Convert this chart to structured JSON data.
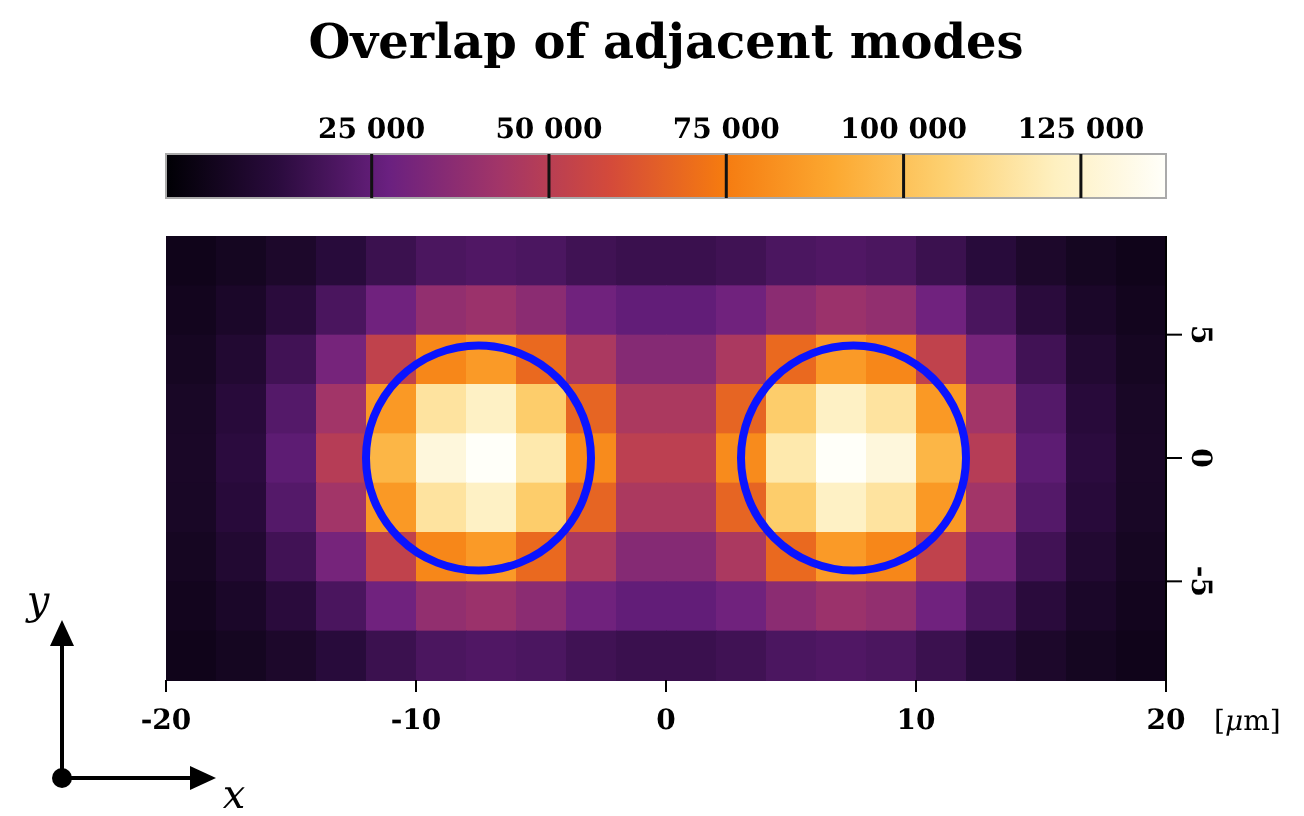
{
  "chart_data": {
    "type": "heatmap",
    "title": "Overlap of adjacent modes",
    "xlabel": "[μm]",
    "x": [
      -19,
      -17,
      -15,
      -13,
      -11,
      -9,
      -7,
      -5,
      -3,
      -1,
      1,
      3,
      5,
      7,
      9,
      11,
      13,
      15,
      17,
      19
    ],
    "y": [
      8,
      6,
      4,
      2,
      0,
      -2,
      -4,
      -6,
      -8
    ],
    "xlim": [
      -20,
      20
    ],
    "xticks": [
      -20,
      -10,
      0,
      10,
      20
    ],
    "ylim": [
      -9,
      9
    ],
    "yticks": [
      -5,
      0,
      5
    ],
    "clim": [
      -4000,
      137000
    ],
    "cticks": [
      {
        "value": 25000,
        "label": "25 000"
      },
      {
        "value": 50000,
        "label": "50 000"
      },
      {
        "value": 75000,
        "label": "75 000"
      },
      {
        "value": 100000,
        "label": "100 000"
      },
      {
        "value": 125000,
        "label": "125 000"
      }
    ],
    "cells": [
      [
        2100,
        4000,
        6700,
        11000,
        15800,
        19700,
        20900,
        19800,
        17100,
        15600,
        15600,
        17100,
        19800,
        20900,
        19700,
        15800,
        11000,
        6700,
        4000,
        2100
      ],
      [
        3100,
        6100,
        11500,
        19400,
        28900,
        38500,
        41100,
        36500,
        29000,
        25400,
        25400,
        29000,
        36500,
        41100,
        38500,
        28900,
        19400,
        11500,
        6100,
        3100
      ],
      [
        4300,
        8700,
        17200,
        30600,
        52400,
        78700,
        85400,
        68900,
        45800,
        35000,
        35000,
        45800,
        68900,
        85400,
        78700,
        52400,
        30600,
        17200,
        8700,
        4300
      ],
      [
        5300,
        10900,
        22000,
        42900,
        84800,
        114800,
        122600,
        104400,
        67400,
        45900,
        45900,
        67400,
        104400,
        122600,
        114800,
        84800,
        42900,
        22000,
        10900,
        5300
      ],
      [
        5600,
        11800,
        24200,
        49200,
        95400,
        128900,
        136700,
        117700,
        80000,
        51000,
        51000,
        80000,
        117700,
        136700,
        128900,
        95400,
        49200,
        24200,
        11800,
        5600
      ],
      [
        5300,
        10900,
        22000,
        42900,
        84800,
        114800,
        122600,
        104400,
        67400,
        45900,
        45900,
        67400,
        104400,
        122600,
        114800,
        84800,
        42900,
        22000,
        10900,
        5300
      ],
      [
        4300,
        8700,
        17200,
        30600,
        52400,
        78700,
        85400,
        68900,
        45800,
        35000,
        35000,
        45800,
        68900,
        85400,
        78700,
        52400,
        30600,
        17200,
        8700,
        4300
      ],
      [
        3100,
        6100,
        11500,
        19400,
        28900,
        38500,
        41100,
        36500,
        29000,
        25400,
        25400,
        29000,
        36500,
        41100,
        38500,
        28900,
        19400,
        11500,
        6100,
        3100
      ],
      [
        2100,
        4000,
        6700,
        11000,
        15800,
        19700,
        20900,
        19800,
        17100,
        15600,
        15600,
        17100,
        19800,
        20900,
        19700,
        15800,
        11000,
        6700,
        4000,
        2100
      ]
    ],
    "annotations": [
      "y",
      "x"
    ]
  }
}
